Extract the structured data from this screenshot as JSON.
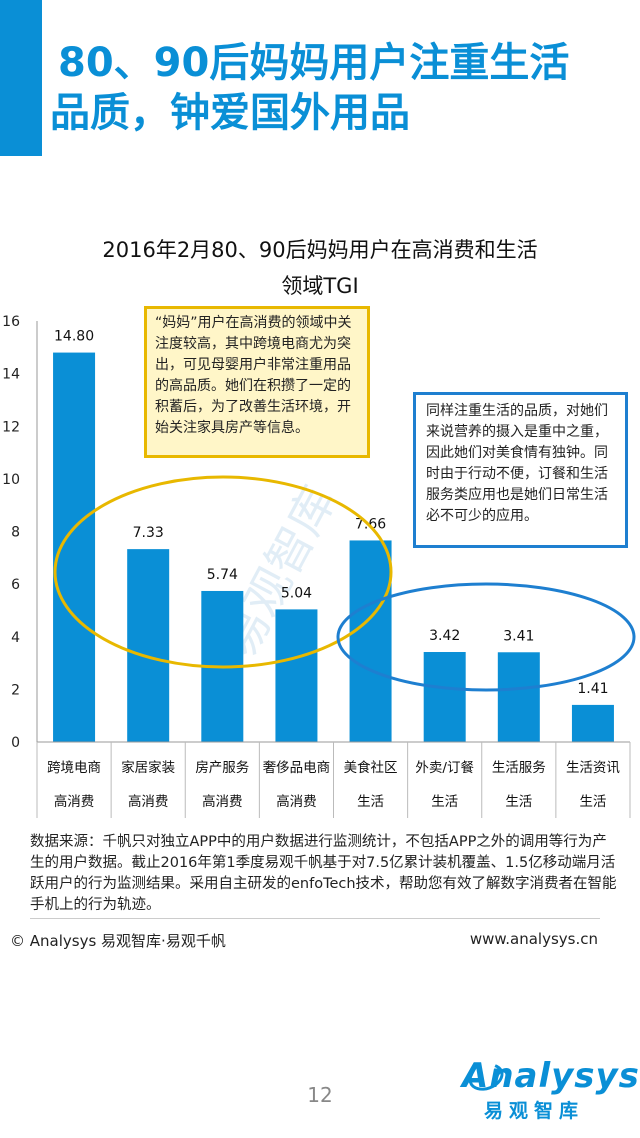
{
  "page": {
    "title_line_1": "80、90后妈妈用户注重生活",
    "title_line_2": "品质，钟爱国外用品",
    "page_number": "12"
  },
  "colors": {
    "accent": "#0a8fd6",
    "bar": "#0a8fd6",
    "callout_yellow_border": "#e8b800",
    "callout_yellow_fill": "#fff6c8",
    "callout_blue_border": "#1e7fd0",
    "ellipse_yellow": "#e8b800",
    "ellipse_blue": "#1e7fd0"
  },
  "chart_data": {
    "type": "bar",
    "title_line_1": "2016年2月80、90后妈妈用户在高消费和生活",
    "title_line_2": "领域TGI",
    "categories": [
      "跨境电商",
      "家居家装",
      "房产服务",
      "奢侈品电商",
      "美食社区",
      "外卖/订餐",
      "生活服务",
      "生活资讯"
    ],
    "groups": [
      "高消费",
      "高消费",
      "高消费",
      "高消费",
      "生活",
      "生活",
      "生活",
      "生活"
    ],
    "values": [
      14.8,
      7.33,
      5.74,
      5.04,
      7.66,
      3.42,
      3.41,
      1.41
    ],
    "value_labels": [
      "14.80",
      "7.33",
      "5.74",
      "5.04",
      "7.66",
      "3.42",
      "3.41",
      "1.41"
    ],
    "ylim": [
      0,
      16
    ],
    "yticks": [
      0,
      2,
      4,
      6,
      8,
      10,
      12,
      14,
      16
    ],
    "xlabel": "",
    "ylabel": ""
  },
  "callouts": {
    "yellow": "“妈妈”用户在高消费的领域中关注度较高，其中跨境电商尤为突出，可见母婴用户非常注重用品的高品质。她们在积攒了一定的积蓄后，为了改善生活环境，开始关注家具房产等信息。",
    "blue": "同样注重生活的品质，对她们来说营养的摄入是重中之重，因此她们对美食情有独钟。同时由于行动不便，订餐和生活服务类应用也是她们日常生活必不可少的应用。"
  },
  "watermark": "易观智库",
  "source_text": "数据来源：千帆只对独立APP中的用户数据进行监测统计，不包括APP之外的调用等行为产生的用户数据。截止2016年第1季度易观千帆基于对7.5亿累计装机覆盖、1.5亿移动端月活跃用户的行为监测结果。采用自主研发的enfoTech技术，帮助您有效了解数字消费者在智能手机上的行为轨迹。",
  "footer": {
    "copyright": "© Analysys 易观智库·易观千帆",
    "website": "www.analysys.cn"
  },
  "logo": {
    "word": "Analysys",
    "sub": "易观智库"
  }
}
